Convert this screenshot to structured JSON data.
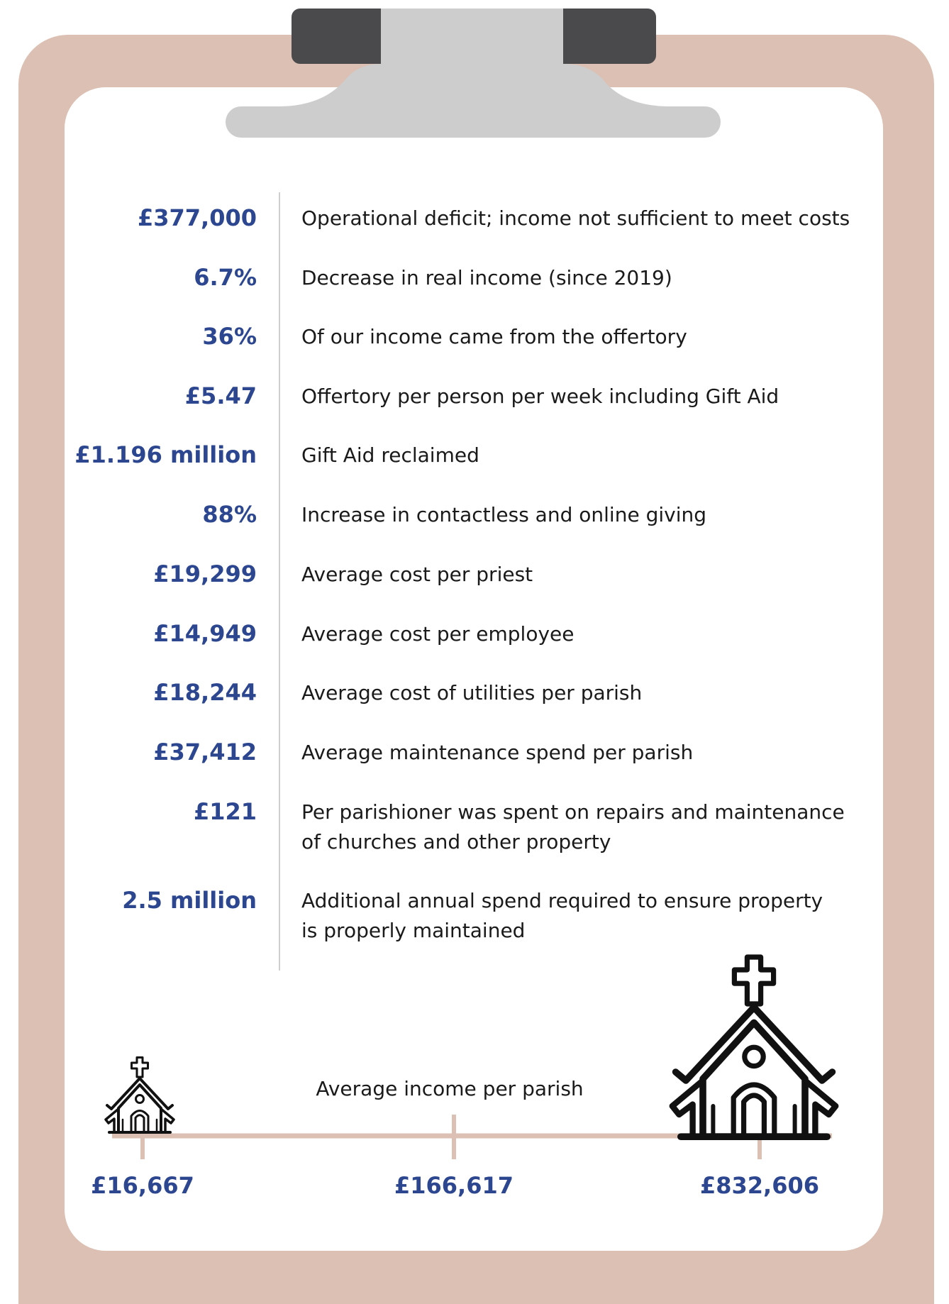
{
  "stats": [
    {
      "value": "£377,000",
      "label": [
        "Operational deficit; income not sufficient to meet costs"
      ]
    },
    {
      "value": "6.7%",
      "label": [
        "Decrease in real income (since 2019)"
      ]
    },
    {
      "value": "36%",
      "label": [
        "Of our income came from the offertory"
      ]
    },
    {
      "value": "£5.47",
      "label": [
        "Offertory per person per week including Gift Aid"
      ]
    },
    {
      "value": "£1.196 million",
      "label": [
        "Gift Aid reclaimed"
      ]
    },
    {
      "value": "88%",
      "label": [
        "Increase in contactless and online giving"
      ]
    },
    {
      "value": "£19,299",
      "label": [
        "Average cost per priest"
      ]
    },
    {
      "value": "£14,949",
      "label": [
        "Average cost per employee"
      ]
    },
    {
      "value": "£18,244",
      "label": [
        "Average cost of utilities per parish"
      ]
    },
    {
      "value": "£37,412",
      "label": [
        "Average maintenance spend per parish"
      ]
    },
    {
      "value": "£121",
      "label": [
        "Per parishioner was spent on repairs and maintenance",
        "of churches and other property"
      ]
    },
    {
      "value": "2.5 million",
      "label": [
        "Additional annual spend required to ensure property",
        "is properly maintained"
      ]
    }
  ],
  "income": {
    "title": "Average income per parish",
    "points": [
      "£16,667",
      "£166,617",
      "£832,606"
    ]
  }
}
